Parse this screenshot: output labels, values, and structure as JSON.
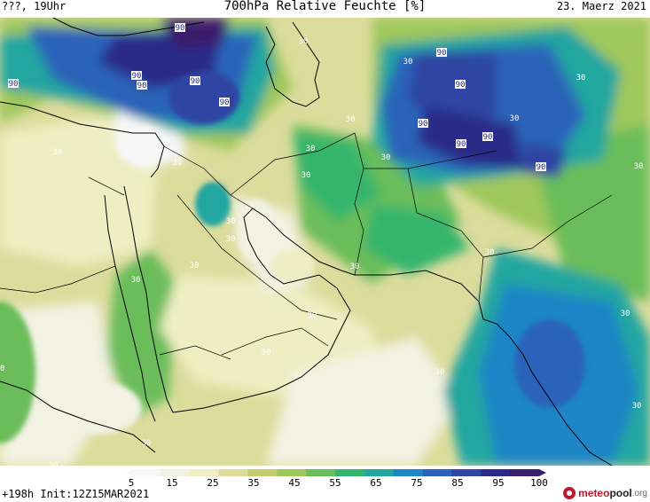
{
  "header": {
    "left": "???, 19Uhr",
    "title": "700hPa Relative Feuchte [%]",
    "right": "23. Maerz 2021"
  },
  "footer": {
    "run": "+198h  Init:12Z15MAR2021",
    "brand_part1": "meteo",
    "brand_part2": "pool",
    "brand_part3": ".org"
  },
  "colorbar": {
    "ticks": [
      "5",
      "15",
      "25",
      "35",
      "45",
      "55",
      "65",
      "75",
      "85",
      "95",
      "100"
    ],
    "colors": [
      "#f7f7f7",
      "#f2f2e2",
      "#eeeec2",
      "#dcdc9c",
      "#c4cf74",
      "#9fc75b",
      "#6bbd5a",
      "#35b56c",
      "#21a6a0",
      "#1f86c6",
      "#2a63b9",
      "#2f45a3",
      "#2c2a88",
      "#3a1e6b"
    ]
  },
  "contour_labels": [
    {
      "text": "90",
      "kind": "dark"
    },
    {
      "text": "90",
      "kind": "dark"
    },
    {
      "text": "90",
      "kind": "dark"
    },
    {
      "text": "90",
      "kind": "dark"
    },
    {
      "text": "90",
      "kind": "dark"
    },
    {
      "text": "90",
      "kind": "dark"
    },
    {
      "text": "90",
      "kind": "dark"
    },
    {
      "text": "90",
      "kind": "dark"
    },
    {
      "text": "90",
      "kind": "dark"
    },
    {
      "text": "90",
      "kind": "dark"
    },
    {
      "text": "90",
      "kind": "dark"
    },
    {
      "text": "90",
      "kind": "dark"
    },
    {
      "text": "30",
      "kind": "light"
    },
    {
      "text": "30",
      "kind": "light"
    },
    {
      "text": "30",
      "kind": "light"
    },
    {
      "text": "30",
      "kind": "light"
    },
    {
      "text": "30",
      "kind": "light"
    },
    {
      "text": "30",
      "kind": "light"
    },
    {
      "text": "30",
      "kind": "light"
    },
    {
      "text": "30",
      "kind": "light"
    },
    {
      "text": "30",
      "kind": "light"
    },
    {
      "text": "30",
      "kind": "light"
    },
    {
      "text": "30",
      "kind": "light"
    },
    {
      "text": "30",
      "kind": "light"
    },
    {
      "text": "30",
      "kind": "light"
    },
    {
      "text": "30",
      "kind": "light"
    },
    {
      "text": "30",
      "kind": "light"
    },
    {
      "text": "30",
      "kind": "light"
    },
    {
      "text": "30",
      "kind": "light"
    },
    {
      "text": "30",
      "kind": "light"
    },
    {
      "text": "30",
      "kind": "light"
    },
    {
      "text": "30",
      "kind": "light"
    },
    {
      "text": "30",
      "kind": "light"
    },
    {
      "text": "30",
      "kind": "light"
    },
    {
      "text": "30",
      "kind": "light"
    },
    {
      "text": "30",
      "kind": "light"
    },
    {
      "text": "30",
      "kind": "light"
    }
  ]
}
